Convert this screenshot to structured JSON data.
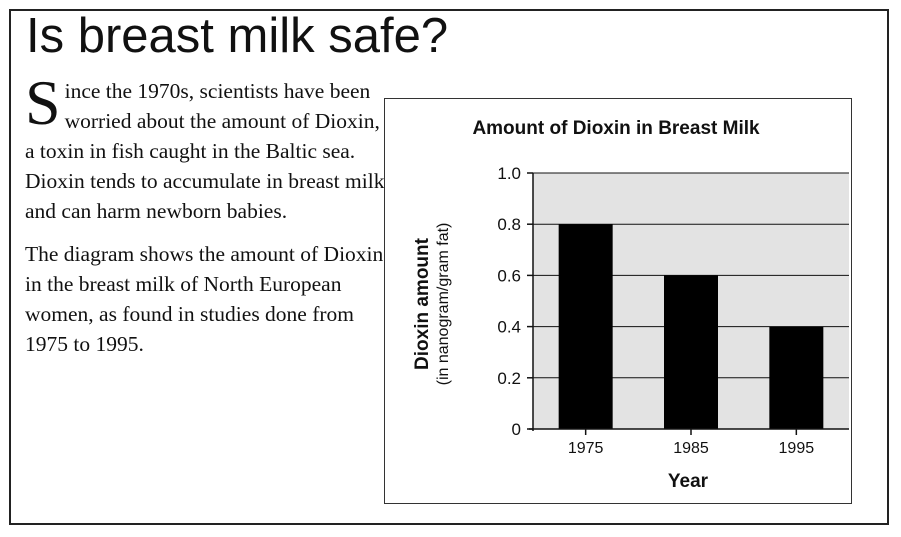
{
  "page": {
    "title": "Is breast milk safe?",
    "para1_dropcap": "S",
    "para1_rest": "ince the 1970s, scientists have been worried about the amount of Dioxin, a toxin in fish caught in the Baltic sea. Dioxin tends to accumulate in breast milk and can harm newborn babies.",
    "para2": "The diagram shows the amount of Dioxin in the breast milk of North European women, as found in studies done from 1975 to 1995."
  },
  "chart_data": {
    "type": "bar",
    "title": "Amount of Dioxin in Breast Milk",
    "xlabel": "Year",
    "ylabel": "Dioxin amount",
    "ylabel_sub": "(in nanogram/gram fat)",
    "categories": [
      "1975",
      "1985",
      "1995"
    ],
    "values": [
      0.8,
      0.6,
      0.4
    ],
    "ylim": [
      0,
      1.0
    ],
    "yticks": [
      0,
      0.2,
      0.4,
      0.6,
      0.8,
      1.0
    ],
    "ytick_labels": [
      "0",
      "0.2",
      "0.4",
      "0.6",
      "0.8",
      "1.0"
    ],
    "grid": true,
    "colors": {
      "bar": "#000000",
      "plot_bg": "#e3e3e3",
      "grid": "#111111"
    }
  }
}
